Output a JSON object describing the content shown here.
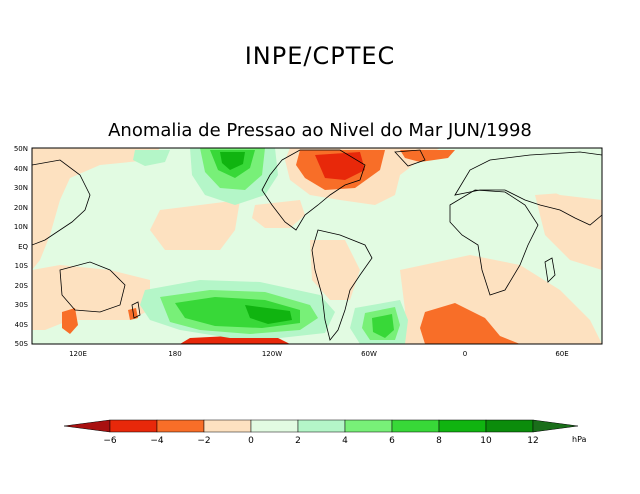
{
  "header": {
    "title": "INPE/CPTEC"
  },
  "map": {
    "title": "Anomalia de Pressao ao Nivel do Mar JUN/1998",
    "lat_labels": [
      "50N",
      "40N",
      "30N",
      "20N",
      "10N",
      "EQ",
      "10S",
      "20S",
      "30S",
      "40S",
      "50S"
    ],
    "lon_labels": [
      "120E",
      "180",
      "120W",
      "60W",
      "0",
      "60E"
    ]
  },
  "legend": {
    "unit": "hPa",
    "tick_labels": [
      "−6",
      "−4",
      "−2",
      "0",
      "2",
      "4",
      "6",
      "8",
      "10",
      "12"
    ],
    "colors": [
      "#a81010",
      "#e8280a",
      "#f86e28",
      "#f8a050",
      "#fde1c0",
      "#e2fbe2",
      "#b4f6c8",
      "#78f078",
      "#38d838",
      "#10b410",
      "#0b8c0b",
      "#1a6e1a"
    ]
  },
  "colors": {
    "neutral": "#e2fbe2",
    "weak_negative": "#fde1c0",
    "moderate_negative": "#f86e28",
    "strong_negative": "#e8280a",
    "weak_positive": "#b4f6c8",
    "moderate_positive": "#78f078",
    "strong_positive": "#38d838",
    "very_strong_positive": "#10b410"
  }
}
